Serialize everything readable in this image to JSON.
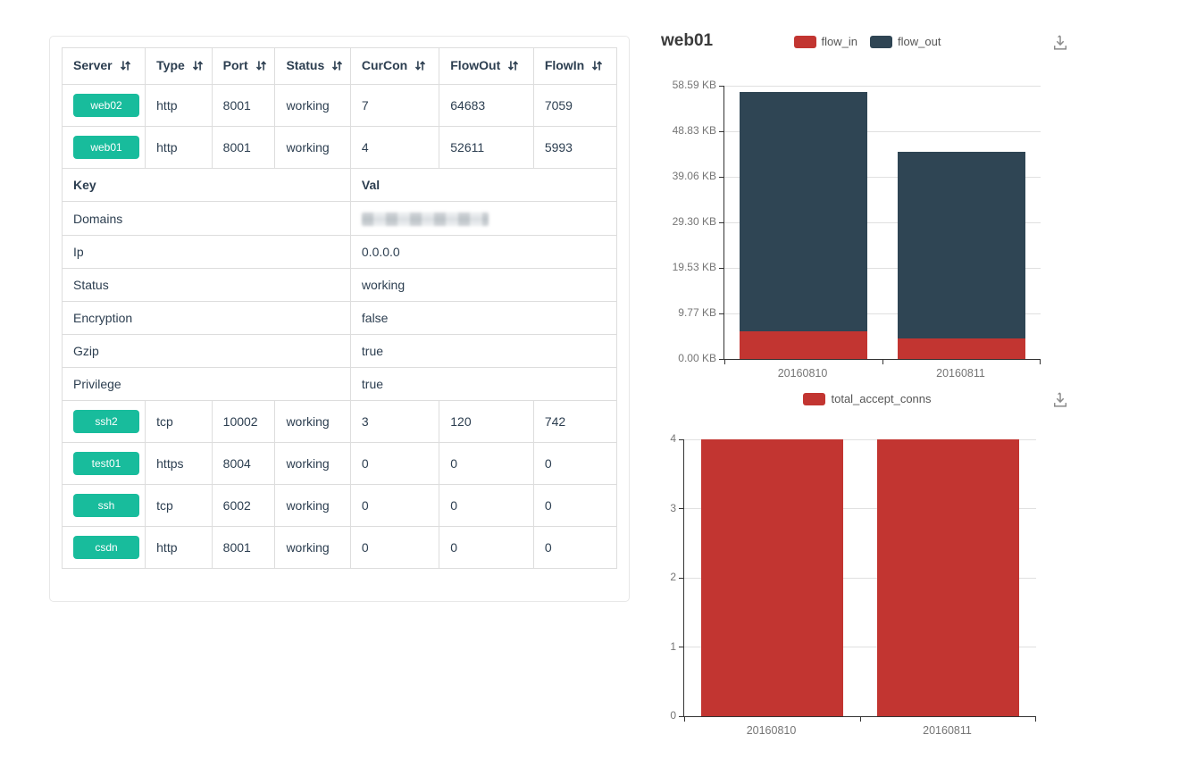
{
  "table": {
    "columns": [
      "Server",
      "Type",
      "Port",
      "Status",
      "CurCon",
      "FlowOut",
      "FlowIn"
    ],
    "rows_top": [
      {
        "server": "web02",
        "type": "http",
        "port": "8001",
        "status": "working",
        "curcon": "7",
        "flowout": "64683",
        "flowin": "7059"
      },
      {
        "server": "web01",
        "type": "http",
        "port": "8001",
        "status": "working",
        "curcon": "4",
        "flowout": "52611",
        "flowin": "5993"
      }
    ],
    "detail_header": {
      "key": "Key",
      "val": "Val"
    },
    "detail_rows": [
      {
        "key": "Domains",
        "val": "",
        "redacted": true
      },
      {
        "key": "Ip",
        "val": "0.0.0.0",
        "redacted": false
      },
      {
        "key": "Status",
        "val": "working",
        "redacted": false
      },
      {
        "key": "Encryption",
        "val": "false",
        "redacted": false
      },
      {
        "key": "Gzip",
        "val": "true",
        "redacted": false
      },
      {
        "key": "Privilege",
        "val": "true",
        "redacted": false
      }
    ],
    "rows_bottom": [
      {
        "server": "ssh2",
        "type": "tcp",
        "port": "10002",
        "status": "working",
        "curcon": "3",
        "flowout": "120",
        "flowin": "742"
      },
      {
        "server": "test01",
        "type": "https",
        "port": "8004",
        "status": "working",
        "curcon": "0",
        "flowout": "0",
        "flowin": "0"
      },
      {
        "server": "ssh",
        "type": "tcp",
        "port": "6002",
        "status": "working",
        "curcon": "0",
        "flowout": "0",
        "flowin": "0"
      },
      {
        "server": "csdn",
        "type": "http",
        "port": "8001",
        "status": "working",
        "curcon": "0",
        "flowout": "0",
        "flowin": "0"
      }
    ],
    "colors": {
      "badge": "#18bc9c",
      "text": "#2c3e50",
      "border": "#dddddd"
    },
    "icons": {
      "sort": "sort-arrows",
      "sort_glyph": "⇅"
    }
  },
  "chart_data": [
    {
      "type": "bar",
      "stacked": true,
      "title": "web01",
      "categories": [
        "20160810",
        "20160811"
      ],
      "series": [
        {
          "name": "flow_in",
          "color": "#c23531",
          "values": [
            5.85,
            4.5
          ]
        },
        {
          "name": "flow_out",
          "color": "#2f4554",
          "values": [
            51.4,
            40.0
          ]
        }
      ],
      "xlabel": "",
      "ylabel": "",
      "ylim": [
        0,
        58.59
      ],
      "yticks": [
        "0.00 KB",
        "9.77 KB",
        "19.53 KB",
        "29.30 KB",
        "39.06 KB",
        "48.83 KB",
        "58.59 KB"
      ],
      "unit": "KB",
      "grid": true,
      "legend_position": "top",
      "toolbox": {
        "icon": "download-icon",
        "glyph": "⤓"
      }
    },
    {
      "type": "bar",
      "stacked": false,
      "title": "",
      "categories": [
        "20160810",
        "20160811"
      ],
      "series": [
        {
          "name": "total_accept_conns",
          "color": "#c23531",
          "values": [
            4,
            4
          ]
        }
      ],
      "xlabel": "",
      "ylabel": "",
      "ylim": [
        0,
        4
      ],
      "yticks": [
        "0",
        "1",
        "2",
        "3",
        "4"
      ],
      "unit": "",
      "grid": true,
      "legend_position": "top",
      "toolbox": {
        "icon": "download-icon",
        "glyph": "⤓"
      }
    }
  ]
}
